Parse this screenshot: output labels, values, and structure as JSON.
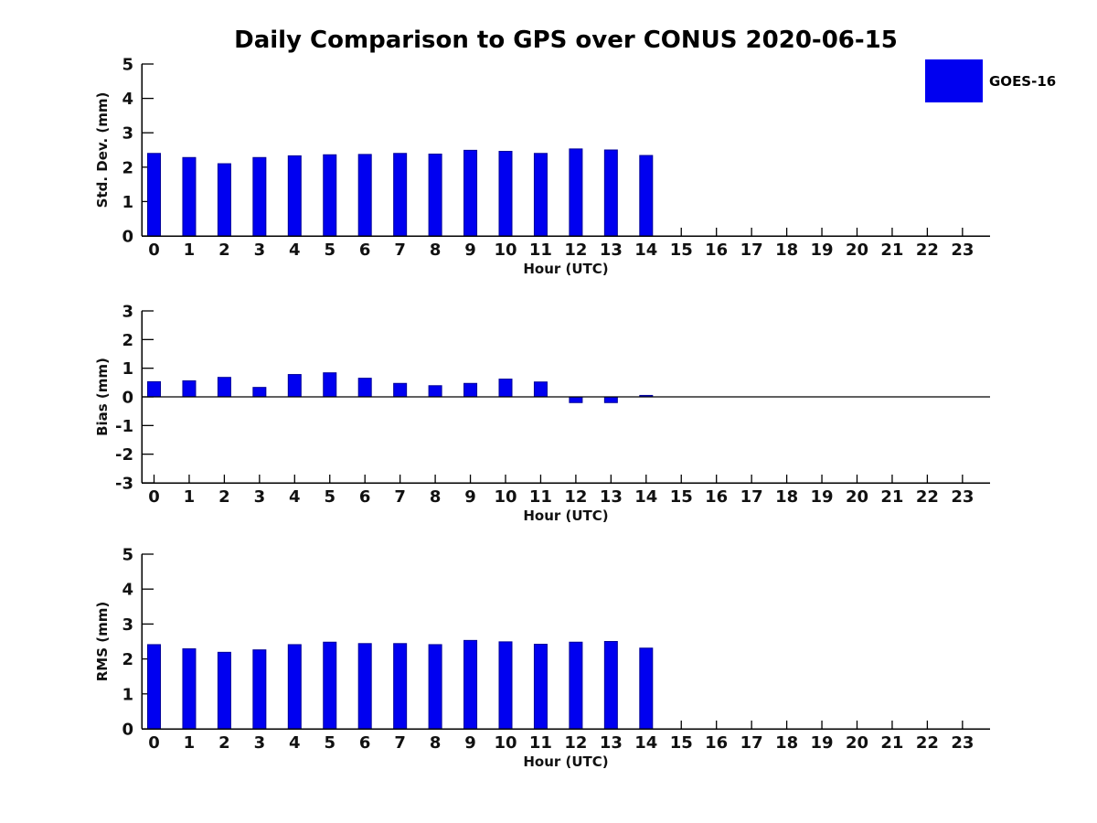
{
  "title": "Daily Comparison to GPS over CONUS 2020-06-15",
  "legend": {
    "label": "GOES-16",
    "color": "#0000f0"
  },
  "colors": {
    "bar_fill": "#0000f0",
    "bar_edge": "#000099",
    "axis": "#000000",
    "text": "#111111"
  },
  "chart_data": [
    {
      "type": "bar",
      "name": "std-dev",
      "series_label": "GOES-16",
      "ylabel": "Std. Dev. (mm)",
      "xlabel": "Hour (UTC)",
      "ylim": [
        0,
        5
      ],
      "yticks": [
        0,
        1,
        2,
        3,
        4,
        5
      ],
      "xticks": [
        0,
        1,
        2,
        3,
        4,
        5,
        6,
        7,
        8,
        9,
        10,
        11,
        12,
        13,
        14,
        15,
        16,
        17,
        18,
        19,
        20,
        21,
        22,
        23
      ],
      "x": [
        0,
        1,
        2,
        3,
        4,
        5,
        6,
        7,
        8,
        9,
        10,
        11,
        12,
        13,
        14
      ],
      "values": [
        2.4,
        2.28,
        2.1,
        2.28,
        2.33,
        2.36,
        2.37,
        2.4,
        2.38,
        2.49,
        2.46,
        2.4,
        2.53,
        2.5,
        2.34
      ]
    },
    {
      "type": "bar",
      "name": "bias",
      "series_label": "GOES-16",
      "ylabel": "Bias (mm)",
      "xlabel": "Hour (UTC)",
      "ylim": [
        -3,
        3
      ],
      "yticks": [
        -3,
        -2,
        -1,
        0,
        1,
        2,
        3
      ],
      "xticks": [
        0,
        1,
        2,
        3,
        4,
        5,
        6,
        7,
        8,
        9,
        10,
        11,
        12,
        13,
        14,
        15,
        16,
        17,
        18,
        19,
        20,
        21,
        22,
        23
      ],
      "x": [
        0,
        1,
        2,
        3,
        4,
        5,
        6,
        7,
        8,
        9,
        10,
        11,
        12,
        13,
        14
      ],
      "values": [
        0.53,
        0.56,
        0.68,
        0.33,
        0.78,
        0.84,
        0.65,
        0.47,
        0.39,
        0.47,
        0.62,
        0.52,
        -0.2,
        -0.2,
        0.05
      ]
    },
    {
      "type": "bar",
      "name": "rms",
      "series_label": "GOES-16",
      "ylabel": "RMS (mm)",
      "xlabel": "Hour (UTC)",
      "ylim": [
        0,
        5
      ],
      "yticks": [
        0,
        1,
        2,
        3,
        4,
        5
      ],
      "xticks": [
        0,
        1,
        2,
        3,
        4,
        5,
        6,
        7,
        8,
        9,
        10,
        11,
        12,
        13,
        14,
        15,
        16,
        17,
        18,
        19,
        20,
        21,
        22,
        23
      ],
      "x": [
        0,
        1,
        2,
        3,
        4,
        5,
        6,
        7,
        8,
        9,
        10,
        11,
        12,
        13,
        14
      ],
      "values": [
        2.41,
        2.29,
        2.19,
        2.26,
        2.41,
        2.48,
        2.44,
        2.44,
        2.41,
        2.53,
        2.49,
        2.42,
        2.48,
        2.5,
        2.31
      ]
    }
  ]
}
